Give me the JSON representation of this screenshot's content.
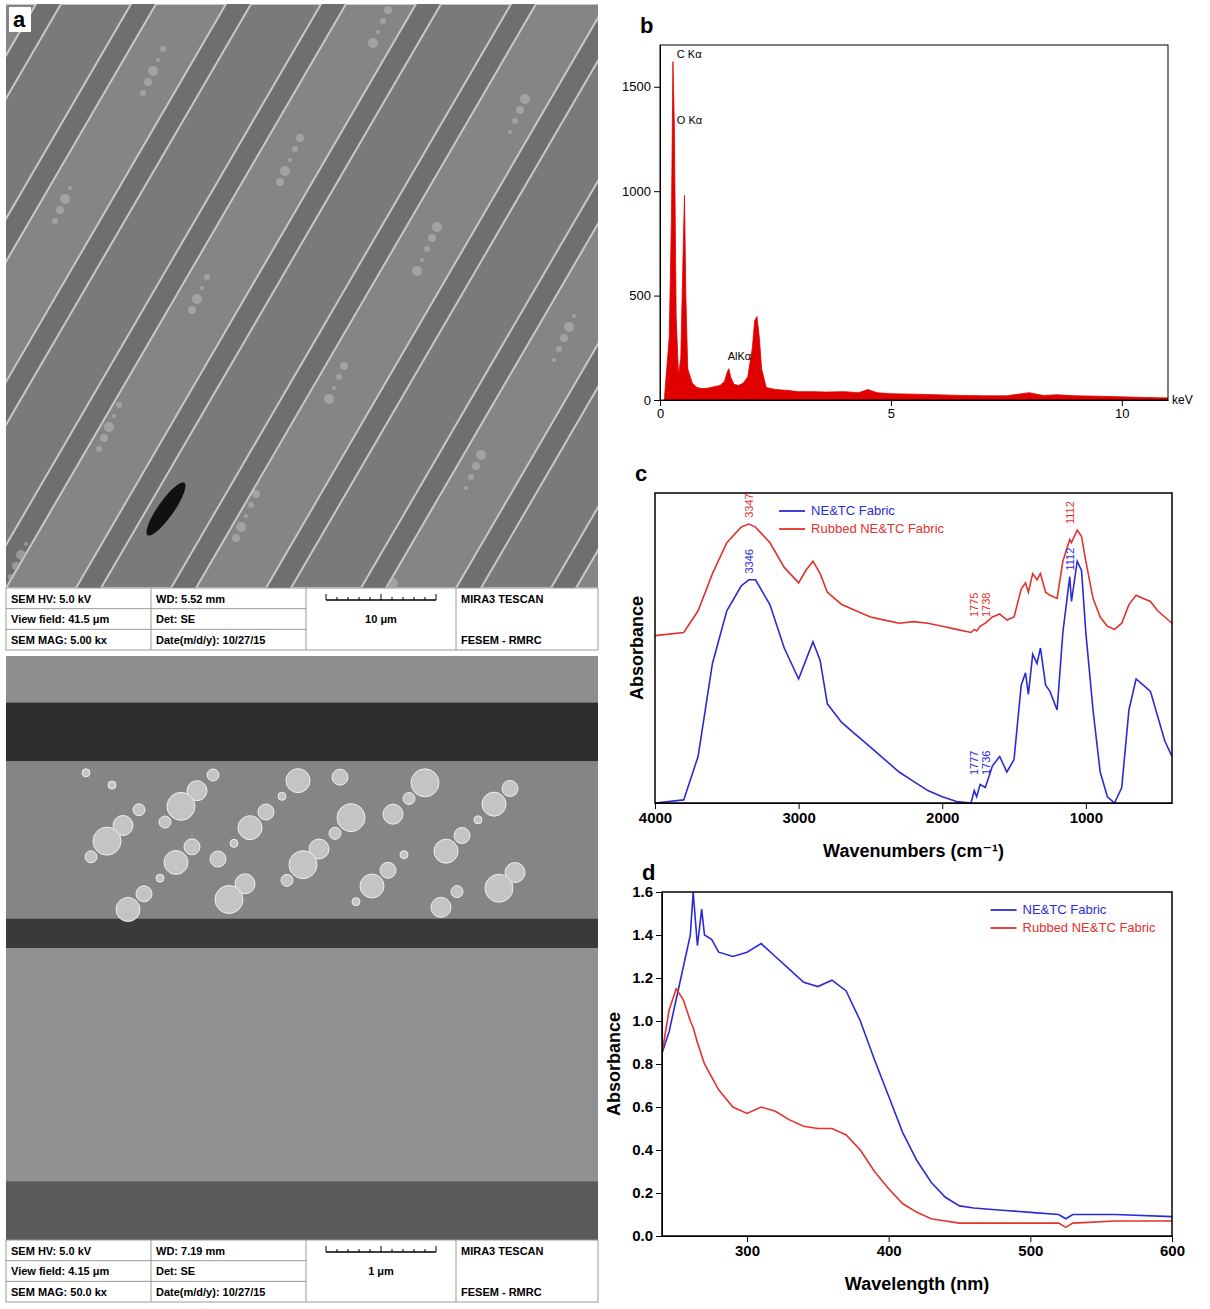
{
  "sem_images": {
    "label": "a",
    "images": [
      {
        "hv": "SEM HV: 5.0 kV",
        "wd": "WD: 5.52 mm",
        "brand": "MIRA3 TESCAN",
        "view_field": "View field: 41.5 μm",
        "det": "Det: SE",
        "scale": "10 μm",
        "mag": "SEM MAG: 5.00 kx",
        "date": "Date(m/d/y): 10/27/15",
        "lab": "FESEM - RMRC"
      },
      {
        "hv": "SEM HV: 5.0 kV",
        "wd": "WD: 7.19 mm",
        "brand": "MIRA3 TESCAN",
        "view_field": "View field: 4.15 μm",
        "det": "Det: SE",
        "scale": "1 μm",
        "mag": "SEM MAG: 50.0 kx",
        "date": "Date(m/d/y): 10/27/15",
        "lab": "FESEM - RMRC"
      }
    ]
  },
  "chart_data": [
    {
      "label": "b",
      "type": "area",
      "color": "#e00000",
      "x": [
        0.1,
        0.2,
        0.25,
        0.28,
        0.31,
        0.35,
        0.4,
        0.45,
        0.5,
        0.53,
        0.56,
        0.6,
        0.7,
        0.8,
        0.9,
        1.0,
        1.1,
        1.2,
        1.3,
        1.4,
        1.45,
        1.49,
        1.53,
        1.6,
        1.7,
        1.8,
        1.9,
        2.0,
        2.05,
        2.1,
        2.15,
        2.2,
        2.3,
        2.5,
        2.8,
        3.0,
        3.3,
        3.6,
        4.0,
        4.3,
        4.5,
        4.7,
        5.0,
        5.5,
        6.0,
        6.5,
        7.0,
        7.5,
        8.0,
        8.1,
        8.3,
        8.6,
        9.0,
        9.5,
        10.0,
        10.5,
        11.0
      ],
      "values": [
        20,
        300,
        900,
        1620,
        1320,
        400,
        120,
        200,
        700,
        980,
        500,
        150,
        80,
        60,
        55,
        55,
        60,
        65,
        70,
        90,
        130,
        150,
        110,
        75,
        70,
        80,
        110,
        250,
        380,
        400,
        300,
        150,
        60,
        50,
        45,
        40,
        40,
        38,
        40,
        35,
        50,
        35,
        30,
        28,
        25,
        22,
        20,
        20,
        35,
        30,
        22,
        25,
        20,
        18,
        15,
        12,
        10
      ],
      "xlim": [
        0,
        11
      ],
      "xticks": [
        0,
        5,
        10
      ],
      "ylim": [
        0,
        1700
      ],
      "yticks": [
        0,
        500,
        1000,
        1500
      ],
      "x_unit": "keV",
      "annotations": [
        {
          "text": "C Kα",
          "x": 0.3,
          "y": 1640
        },
        {
          "text": "O Kα",
          "x": 0.3,
          "y": 1320
        },
        {
          "text": "AlKα",
          "x": 1.4,
          "y": 190
        }
      ]
    },
    {
      "label": "c",
      "type": "line",
      "x_title": "Wavenumbers (cm⁻¹)",
      "y_title": "Absorbance",
      "x": [
        4000,
        3800,
        3700,
        3600,
        3500,
        3400,
        3347,
        3300,
        3200,
        3100,
        3000,
        2950,
        2900,
        2850,
        2800,
        2700,
        2600,
        2500,
        2400,
        2300,
        2200,
        2100,
        2000,
        1900,
        1800,
        1777,
        1760,
        1736,
        1700,
        1650,
        1600,
        1550,
        1500,
        1450,
        1420,
        1400,
        1370,
        1340,
        1316,
        1280,
        1250,
        1200,
        1160,
        1112,
        1100,
        1060,
        1030,
        1000,
        950,
        900,
        850,
        800,
        750,
        700,
        650,
        600,
        550,
        500,
        450,
        400
      ],
      "series": [
        {
          "name": "NE&TC Fabric",
          "color": "#2b2bd6",
          "values": [
            0,
            0.01,
            0.15,
            0.45,
            0.62,
            0.7,
            0.72,
            0.72,
            0.64,
            0.5,
            0.4,
            0.46,
            0.52,
            0.46,
            0.32,
            0.26,
            0.22,
            0.18,
            0.14,
            0.1,
            0.07,
            0.04,
            0.02,
            0.005,
            0,
            0.04,
            0.02,
            0.06,
            0.05,
            0.12,
            0.15,
            0.1,
            0.14,
            0.38,
            0.42,
            0.35,
            0.48,
            0.45,
            0.5,
            0.38,
            0.36,
            0.3,
            0.55,
            0.73,
            0.65,
            0.78,
            0.75,
            0.55,
            0.3,
            0.1,
            0.02,
            0,
            0.05,
            0.3,
            0.4,
            0.38,
            0.36,
            0.28,
            0.2,
            0.15
          ]
        },
        {
          "name": "Rubbed NE&TC Fabric",
          "color": "#e3312d",
          "values": [
            0.54,
            0.55,
            0.62,
            0.74,
            0.84,
            0.89,
            0.9,
            0.89,
            0.84,
            0.76,
            0.71,
            0.75,
            0.78,
            0.74,
            0.68,
            0.64,
            0.62,
            0.6,
            0.59,
            0.58,
            0.585,
            0.58,
            0.57,
            0.56,
            0.55,
            0.56,
            0.555,
            0.57,
            0.58,
            0.6,
            0.61,
            0.59,
            0.6,
            0.69,
            0.71,
            0.68,
            0.74,
            0.72,
            0.74,
            0.68,
            0.67,
            0.66,
            0.78,
            0.85,
            0.84,
            0.88,
            0.86,
            0.78,
            0.66,
            0.6,
            0.57,
            0.56,
            0.58,
            0.64,
            0.67,
            0.66,
            0.65,
            0.62,
            0.6,
            0.58
          ]
        }
      ],
      "xlim": [
        4000,
        400
      ],
      "xticks": [
        4000,
        3000,
        2000,
        1000
      ],
      "ylim": [
        0,
        1
      ],
      "tick_labels": "x",
      "legend": "top",
      "annotations": [
        {
          "text": "3347",
          "x": 3347,
          "y": 0.92,
          "color": "#e3312d"
        },
        {
          "text": "3346",
          "x": 3346,
          "y": 0.74,
          "color": "#2b2bd6"
        },
        {
          "text": "1775",
          "x": 1775,
          "y": 0.6,
          "color": "#e3312d"
        },
        {
          "text": "1738",
          "x": 1738,
          "y": 0.6,
          "color": "#e3312d"
        },
        {
          "text": "1112",
          "x": 1112,
          "y": 0.9,
          "color": "#e3312d"
        },
        {
          "text": "1777",
          "x": 1777,
          "y": 0.09,
          "color": "#2b2bd6"
        },
        {
          "text": "1736",
          "x": 1736,
          "y": 0.09,
          "color": "#2b2bd6"
        },
        {
          "text": "1112",
          "x": 1112,
          "y": 0.75,
          "color": "#2b2bd6"
        }
      ]
    },
    {
      "label": "d",
      "type": "line",
      "x_title": "Wavelength (nm)",
      "y_title": "Absorbance",
      "x": [
        240,
        245,
        250,
        255,
        260,
        262,
        265,
        268,
        270,
        275,
        280,
        290,
        300,
        310,
        320,
        330,
        340,
        350,
        360,
        370,
        380,
        390,
        400,
        410,
        420,
        430,
        440,
        450,
        460,
        480,
        500,
        520,
        525,
        530,
        560,
        600
      ],
      "series": [
        {
          "name": "NE&TC Fabric",
          "color": "#2b2bd6",
          "values": [
            0.85,
            0.95,
            1.1,
            1.25,
            1.4,
            1.6,
            1.35,
            1.52,
            1.4,
            1.38,
            1.32,
            1.3,
            1.32,
            1.36,
            1.3,
            1.24,
            1.18,
            1.16,
            1.19,
            1.14,
            1,
            0.82,
            0.65,
            0.48,
            0.35,
            0.25,
            0.18,
            0.14,
            0.13,
            0.12,
            0.11,
            0.1,
            0.08,
            0.1,
            0.1,
            0.09
          ]
        },
        {
          "name": "Rubbed NE&TC Fabric",
          "color": "#e3312d",
          "values": [
            0.85,
            1.05,
            1.15,
            1.1,
            1.0,
            0.97,
            0.9,
            0.84,
            0.8,
            0.74,
            0.68,
            0.6,
            0.57,
            0.6,
            0.58,
            0.54,
            0.51,
            0.5,
            0.5,
            0.47,
            0.4,
            0.3,
            0.22,
            0.15,
            0.11,
            0.08,
            0.07,
            0.06,
            0.06,
            0.06,
            0.06,
            0.06,
            0.04,
            0.06,
            0.07,
            0.07
          ]
        }
      ],
      "xlim": [
        240,
        600
      ],
      "xticks": [
        300,
        400,
        500,
        600
      ],
      "ylim": [
        0,
        1.6
      ],
      "yticks": [
        {
          "value": 0,
          "label": "0.0"
        },
        0.2,
        0.4,
        0.6,
        0.8,
        {
          "value": 1,
          "label": "1.0"
        },
        1.2,
        1.4,
        1.6
      ],
      "legend": "top-right"
    }
  ]
}
